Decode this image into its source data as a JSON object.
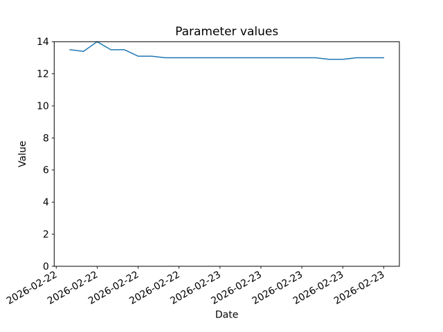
{
  "figure": {
    "background": "#ffffff",
    "text_color": "#000000",
    "spine_color": "#000000"
  },
  "chart_data": {
    "type": "line",
    "title": "Parameter values",
    "xlabel": "Date",
    "ylabel": "Value",
    "grid": false,
    "legend": "none",
    "line": {
      "color": "#1f77b4",
      "width": 1.5
    },
    "x": [
      1,
      2,
      3,
      4,
      5,
      6,
      7,
      8,
      9,
      10,
      11,
      12,
      13,
      14,
      15,
      16,
      17,
      18,
      19,
      20,
      21,
      22,
      23,
      24
    ],
    "values": [
      13.5,
      13.4,
      14.0,
      13.5,
      13.5,
      13.1,
      13.1,
      13.0,
      13.0,
      13.0,
      13.0,
      13.0,
      13.0,
      13.0,
      13.0,
      13.0,
      13.0,
      13.0,
      13.0,
      12.9,
      12.9,
      13.0,
      13.0,
      13.0
    ],
    "xlim": [
      -0.15,
      25.15
    ],
    "ylim": [
      0,
      14
    ],
    "yticks": [
      0,
      2,
      4,
      6,
      8,
      10,
      12,
      14
    ],
    "xticks": [
      {
        "pos": 0,
        "label": "2026-02-22"
      },
      {
        "pos": 3,
        "label": "2026-02-22"
      },
      {
        "pos": 6,
        "label": "2026-02-22"
      },
      {
        "pos": 9,
        "label": "2026-02-22"
      },
      {
        "pos": 12,
        "label": "2026-02-23"
      },
      {
        "pos": 15,
        "label": "2026-02-23"
      },
      {
        "pos": 18,
        "label": "2026-02-23"
      },
      {
        "pos": 21,
        "label": "2026-02-23"
      },
      {
        "pos": 24,
        "label": "2026-02-23"
      }
    ],
    "xtick_rotation_deg": 30
  }
}
